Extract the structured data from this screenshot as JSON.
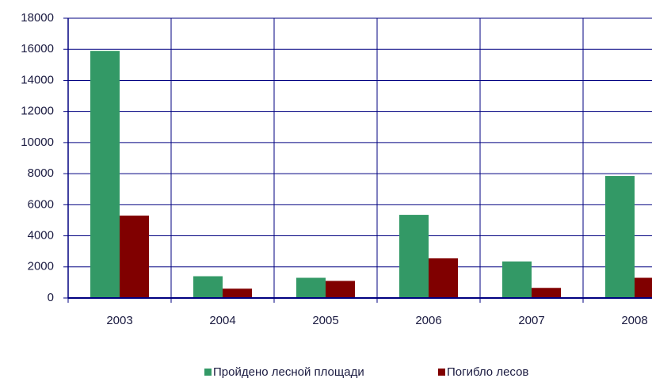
{
  "chart_data": {
    "type": "bar",
    "categories": [
      "2003",
      "2004",
      "2005",
      "2006",
      "2007",
      "2008"
    ],
    "series": [
      {
        "name": "Пройдено лесной площади",
        "color": "#339966",
        "values": [
          15900,
          1400,
          1300,
          5350,
          2350,
          7850
        ]
      },
      {
        "name": "Погибло лесов",
        "color": "#800000",
        "values": [
          5300,
          600,
          1100,
          2550,
          650,
          1300
        ]
      }
    ],
    "ylim": [
      0,
      18000
    ],
    "yticks": [
      0,
      2000,
      4000,
      6000,
      8000,
      10000,
      12000,
      14000,
      16000,
      18000
    ],
    "grid": true,
    "legend": "bottom"
  }
}
